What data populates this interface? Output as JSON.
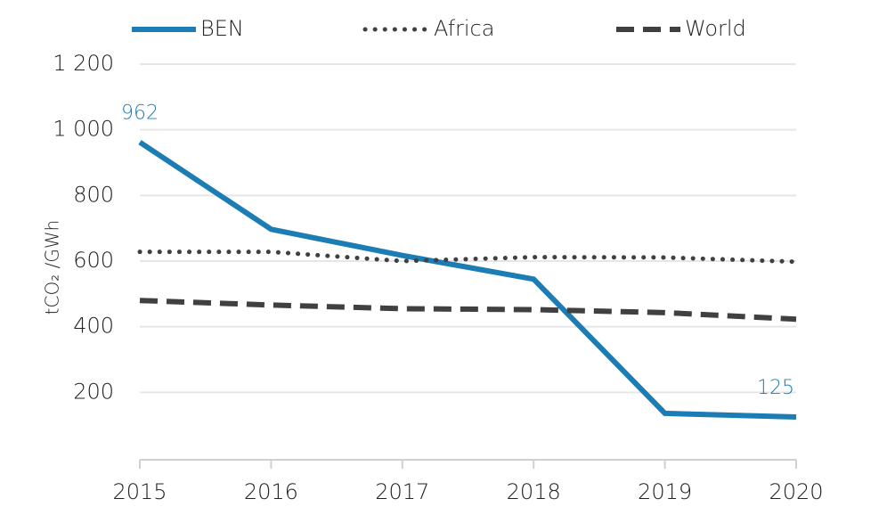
{
  "chart_data": {
    "type": "line",
    "y_label": "tCO₂ /GWh",
    "categories": [
      "2015",
      "2016",
      "2017",
      "2018",
      "2019",
      "2020"
    ],
    "series": [
      {
        "name": "BEN",
        "color": "#1b7db3",
        "style": "solid",
        "values": [
          962,
          697,
          617,
          545,
          136,
          125
        ]
      },
      {
        "name": "Africa",
        "color": "#404040",
        "style": "dotted",
        "values": [
          628,
          628,
          600,
          612,
          611,
          598
        ]
      },
      {
        "name": "World",
        "color": "#404040",
        "style": "dashed",
        "values": [
          480,
          466,
          455,
          452,
          443,
          423
        ]
      }
    ],
    "data_labels": {
      "series": 0,
      "points": "ends"
    },
    "ylim": [
      0,
      1200
    ],
    "yticks": [
      200,
      400,
      600,
      800,
      {
        "value": 1000,
        "label": "1 000"
      },
      {
        "value": 1200,
        "label": "1 200"
      }
    ],
    "grid": true,
    "legend": "top"
  }
}
